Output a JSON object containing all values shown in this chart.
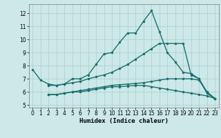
{
  "xlabel": "Humidex (Indice chaleur)",
  "bg_color": "#cce8e8",
  "grid_color": "#aacccc",
  "line_color": "#1a6e6e",
  "yticks": [
    5,
    6,
    7,
    8,
    9,
    10,
    11,
    12
  ],
  "xticks": [
    0,
    1,
    2,
    3,
    4,
    5,
    6,
    7,
    8,
    9,
    10,
    11,
    12,
    13,
    14,
    15,
    16,
    17,
    18,
    19,
    20,
    21,
    22,
    23
  ],
  "xlim": [
    -0.5,
    23.5
  ],
  "ylim": [
    4.8,
    12.7
  ],
  "lines": [
    {
      "x": [
        0,
        1,
        2,
        3,
        4,
        5,
        6,
        7,
        8,
        9,
        10,
        11,
        12,
        13,
        14,
        15,
        16,
        17,
        18,
        19,
        20,
        21,
        22,
        23
      ],
      "y": [
        7.7,
        6.9,
        6.6,
        6.5,
        6.6,
        7.0,
        7.0,
        7.3,
        8.1,
        8.9,
        9.0,
        9.8,
        10.5,
        10.5,
        11.4,
        12.2,
        10.6,
        9.0,
        8.3,
        7.5,
        7.4,
        7.0,
        5.9,
        5.5
      ],
      "style": "-",
      "marker": "o",
      "markersize": 2.0,
      "linewidth": 1.0
    },
    {
      "x": [
        2,
        3,
        4,
        5,
        6,
        7,
        8,
        9,
        10,
        11,
        12,
        13,
        14,
        15,
        16,
        17,
        18,
        19,
        20,
        21,
        22,
        23
      ],
      "y": [
        6.5,
        6.5,
        6.6,
        6.7,
        6.8,
        7.0,
        7.15,
        7.3,
        7.5,
        7.8,
        8.1,
        8.5,
        8.9,
        9.3,
        9.7,
        9.7,
        9.7,
        9.7,
        7.3,
        7.0,
        6.0,
        5.5
      ],
      "style": "-",
      "marker": "o",
      "markersize": 2.0,
      "linewidth": 1.0
    },
    {
      "x": [
        2,
        3,
        4,
        5,
        6,
        7,
        8,
        9,
        10,
        11,
        12,
        13,
        14,
        15,
        16,
        17,
        18,
        19,
        20,
        21,
        22,
        23
      ],
      "y": [
        5.8,
        5.8,
        5.9,
        6.0,
        6.1,
        6.2,
        6.3,
        6.4,
        6.5,
        6.55,
        6.6,
        6.65,
        6.7,
        6.8,
        6.9,
        7.0,
        7.0,
        7.0,
        7.0,
        6.9,
        6.0,
        5.5
      ],
      "style": "-",
      "marker": "o",
      "markersize": 2.0,
      "linewidth": 1.0
    },
    {
      "x": [
        2,
        3,
        4,
        5,
        6,
        7,
        8,
        9,
        10,
        11,
        12,
        13,
        14,
        15,
        16,
        17,
        18,
        19,
        20,
        21,
        22,
        23
      ],
      "y": [
        5.8,
        5.8,
        5.9,
        6.0,
        6.0,
        6.1,
        6.2,
        6.3,
        6.4,
        6.4,
        6.45,
        6.5,
        6.5,
        6.4,
        6.3,
        6.2,
        6.1,
        6.0,
        5.9,
        5.8,
        5.7,
        5.5
      ],
      "style": "-",
      "marker": "o",
      "markersize": 2.0,
      "linewidth": 1.0
    }
  ]
}
